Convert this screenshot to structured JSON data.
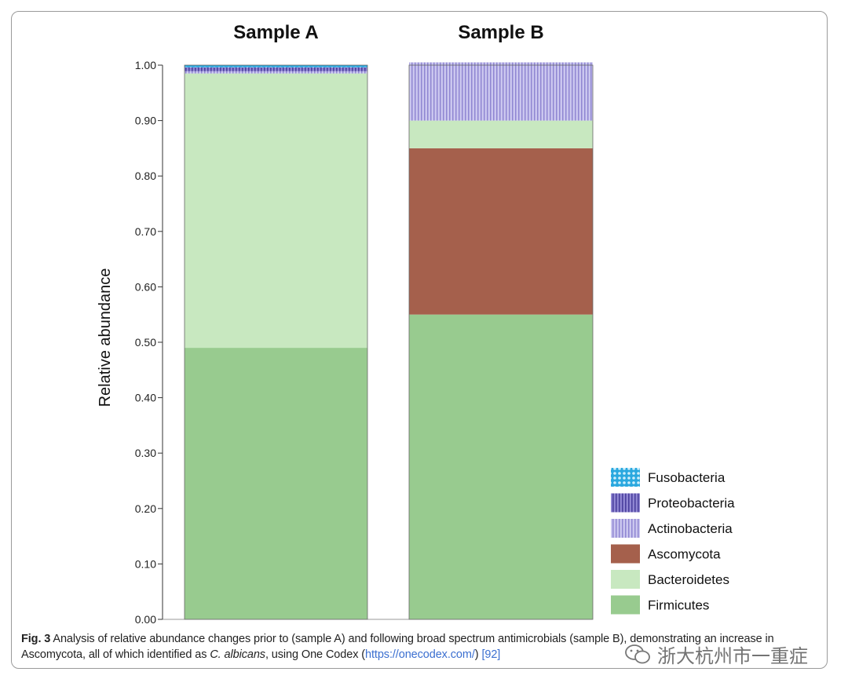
{
  "chart_data": {
    "type": "bar",
    "stacked": true,
    "categories": [
      "Sample A",
      "Sample B"
    ],
    "ylabel": "Relative abundance",
    "xlabel": "",
    "ylim": [
      0,
      1
    ],
    "yticks": [
      "0.00",
      "0.10",
      "0.20",
      "0.30",
      "0.40",
      "0.50",
      "0.60",
      "0.70",
      "0.80",
      "0.90",
      "1.00"
    ],
    "grid": false,
    "legend_position": "bottom-right",
    "series": [
      {
        "name": "Firmicutes",
        "values": [
          0.49,
          0.55
        ],
        "color": "#98cb8f",
        "pattern": "solid"
      },
      {
        "name": "Ascomycota",
        "values": [
          0.0,
          0.3
        ],
        "color": "#a5604c",
        "pattern": "solid"
      },
      {
        "name": "Bacteroidetes",
        "values": [
          0.495,
          0.05
        ],
        "color": "#c8e8c0",
        "pattern": "solid"
      },
      {
        "name": "Actinobacteria",
        "values": [
          0.004,
          0.105
        ],
        "color": "#b9b4e6",
        "pattern": "vertical-lines"
      },
      {
        "name": "Proteobacteria",
        "values": [
          0.007,
          0.0
        ],
        "color": "#6e63bd",
        "pattern": "vertical-lines"
      },
      {
        "name": "Fusobacteria",
        "values": [
          0.004,
          0.0
        ],
        "color": "#2aa8df",
        "pattern": "dots"
      }
    ],
    "legend_order": [
      "Fusobacteria",
      "Proteobacteria",
      "Actinobacteria",
      "Ascomycota",
      "Bacteroidetes",
      "Firmicutes"
    ]
  },
  "caption": {
    "lead": "Fig. 3",
    "text_1": " Analysis of relative abundance changes prior to (sample A) and following broad spectrum antimicrobials (sample B), demonstrating an increase in Ascomycota, all of which identified as ",
    "species": "C. albicans",
    "text_2": ", using One Codex (",
    "link": "https://onecodex.com/",
    "text_3": ") ",
    "ref": "[92]"
  },
  "watermark": {
    "text": "浙大杭州市一重症",
    "icon": "wechat-icon"
  }
}
